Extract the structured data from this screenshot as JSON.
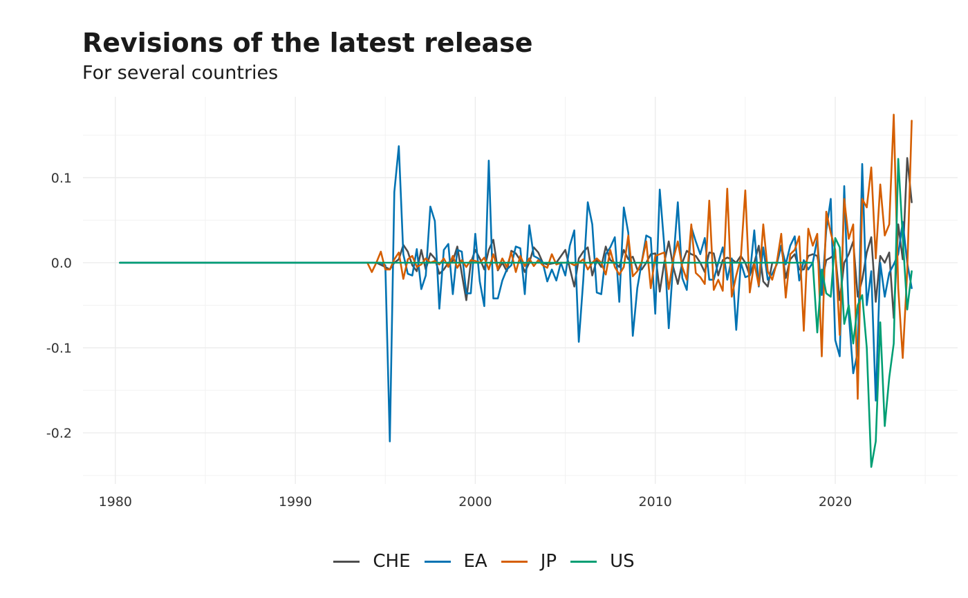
{
  "chart_data": {
    "type": "line",
    "title": "Revisions of the latest release",
    "subtitle": "For several countries",
    "xlabel": "",
    "ylabel": "",
    "xlim": [
      1978.2,
      2026.8
    ],
    "ylim": [
      -0.26,
      0.195
    ],
    "x_ticks": [
      1980,
      1990,
      2000,
      2010,
      2020
    ],
    "x_tick_labels": [
      "1980",
      "1990",
      "2000",
      "2010",
      "2020"
    ],
    "y_ticks": [
      0.1,
      0.0,
      -0.1,
      -0.2
    ],
    "y_tick_labels": [
      "0.1",
      "0.0",
      "-0.1",
      "-0.2"
    ],
    "grid": true,
    "legend_position": "bottom",
    "series": [
      {
        "name": "CHE",
        "color": "#4d4d4d",
        "x": [
          1980.25,
          1994.0,
          1994.5,
          1995.0,
          1995.25,
          1995.5,
          1995.75,
          1996.0,
          1996.25,
          1996.5,
          1996.75,
          1997.0,
          1997.25,
          1997.5,
          1997.75,
          1998.0,
          1998.25,
          1998.5,
          1998.75,
          1999.0,
          1999.25,
          1999.5,
          1999.75,
          2000.0,
          2000.25,
          2000.5,
          2000.75,
          2001.0,
          2001.25,
          2001.5,
          2001.75,
          2002.0,
          2002.25,
          2002.5,
          2002.75,
          2003.0,
          2003.25,
          2003.5,
          2003.75,
          2004.0,
          2004.5,
          2005.0,
          2005.5,
          2005.75,
          2006.0,
          2006.25,
          2006.5,
          2006.75,
          2007.0,
          2007.25,
          2007.5,
          2007.75,
          2008.0,
          2008.25,
          2008.5,
          2008.75,
          2009.0,
          2009.25,
          2009.5,
          2009.75,
          2010.0,
          2010.25,
          2010.5,
          2010.75,
          2011.0,
          2011.25,
          2011.5,
          2011.75,
          2012.0,
          2012.25,
          2012.5,
          2012.75,
          2013.0,
          2013.25,
          2013.5,
          2013.75,
          2014.0,
          2014.25,
          2014.5,
          2014.75,
          2015.0,
          2015.25,
          2015.5,
          2015.75,
          2016.0,
          2016.25,
          2016.5,
          2016.75,
          2017.0,
          2017.25,
          2017.5,
          2017.75,
          2018.0,
          2018.25,
          2018.5,
          2018.75,
          2019.0,
          2019.25,
          2019.5,
          2019.75,
          2020.0,
          2020.25,
          2020.5,
          2020.75,
          2021.0,
          2021.25,
          2021.5,
          2021.75,
          2022.0,
          2022.25,
          2022.5,
          2022.75,
          2023.0,
          2023.25,
          2023.5,
          2023.75,
          2024.0,
          2024.25
        ],
        "y": [
          0.0,
          0.0,
          0.0,
          -0.005,
          -0.008,
          0.0,
          0.004,
          0.021,
          0.013,
          -0.003,
          -0.01,
          0.015,
          -0.008,
          0.011,
          0.005,
          -0.013,
          -0.008,
          0.0,
          0.002,
          0.019,
          -0.013,
          -0.044,
          0.0,
          0.015,
          0.005,
          -0.008,
          0.015,
          0.027,
          -0.009,
          0.0,
          -0.01,
          0.014,
          0.011,
          0.003,
          -0.011,
          0.0,
          0.018,
          0.012,
          0.0,
          -0.002,
          0.0,
          0.015,
          -0.028,
          0.005,
          0.013,
          0.018,
          -0.015,
          0.003,
          -0.005,
          0.019,
          0.003,
          0.0,
          -0.005,
          0.015,
          0.004,
          0.007,
          -0.008,
          -0.008,
          0.0,
          0.01,
          0.011,
          -0.034,
          0.0,
          0.025,
          -0.005,
          -0.025,
          0.0,
          0.014,
          0.01,
          0.008,
          0.0,
          -0.011,
          0.012,
          0.011,
          -0.015,
          0.003,
          0.006,
          0.004,
          0.0,
          0.008,
          0.0,
          -0.015,
          0.0,
          0.02,
          -0.022,
          -0.028,
          0.0,
          0.0,
          0.02,
          -0.018,
          0.004,
          0.01,
          -0.008,
          -0.008,
          0.008,
          0.01,
          0.008,
          -0.023,
          0.003,
          0.006,
          0.01,
          -0.044,
          0.0,
          0.01,
          0.025,
          -0.04,
          -0.02,
          0.012,
          0.03,
          -0.046,
          0.008,
          0.0,
          0.012,
          -0.065,
          0.045,
          0.004,
          0.123,
          0.071
        ]
      },
      {
        "name": "EA",
        "color": "#0072b2",
        "x": [
          1980.25,
          1994.75,
          1995.0,
          1995.25,
          1995.5,
          1995.75,
          1996.0,
          1996.25,
          1996.5,
          1996.75,
          1997.0,
          1997.25,
          1997.5,
          1997.75,
          1998.0,
          1998.25,
          1998.5,
          1998.75,
          1999.0,
          1999.25,
          1999.5,
          1999.75,
          2000.0,
          2000.25,
          2000.5,
          2000.75,
          2001.0,
          2001.25,
          2001.5,
          2001.75,
          2002.0,
          2002.25,
          2002.5,
          2002.75,
          2003.0,
          2003.25,
          2003.5,
          2003.75,
          2004.0,
          2004.25,
          2004.5,
          2004.75,
          2005.0,
          2005.25,
          2005.5,
          2005.75,
          2006.0,
          2006.25,
          2006.5,
          2006.75,
          2007.0,
          2007.25,
          2007.5,
          2007.75,
          2008.0,
          2008.25,
          2008.5,
          2008.75,
          2009.0,
          2009.25,
          2009.5,
          2009.75,
          2010.0,
          2010.25,
          2010.5,
          2010.75,
          2011.0,
          2011.25,
          2011.5,
          2011.75,
          2012.0,
          2012.25,
          2012.5,
          2012.75,
          2013.0,
          2013.25,
          2013.5,
          2013.75,
          2014.0,
          2014.25,
          2014.5,
          2014.75,
          2015.0,
          2015.25,
          2015.5,
          2015.75,
          2016.0,
          2016.25,
          2016.5,
          2016.75,
          2017.0,
          2017.25,
          2017.5,
          2017.75,
          2018.0,
          2018.25,
          2018.5,
          2018.75,
          2019.0,
          2019.25,
          2019.5,
          2019.75,
          2020.0,
          2020.25,
          2020.5,
          2020.75,
          2021.0,
          2021.25,
          2021.5,
          2021.75,
          2022.0,
          2022.25,
          2022.5,
          2022.75,
          2023.0,
          2023.25,
          2023.5,
          2023.75,
          2024.0,
          2024.25
        ],
        "y": [
          0.0,
          0.0,
          -0.003,
          -0.21,
          0.083,
          0.137,
          0.01,
          -0.013,
          -0.015,
          0.016,
          -0.031,
          -0.015,
          0.066,
          0.049,
          -0.054,
          0.015,
          0.022,
          -0.037,
          0.015,
          0.013,
          -0.036,
          -0.036,
          0.034,
          -0.022,
          -0.051,
          0.12,
          -0.042,
          -0.042,
          -0.021,
          -0.008,
          -0.003,
          0.019,
          0.017,
          -0.037,
          0.044,
          0.008,
          0.005,
          0.0,
          -0.022,
          -0.008,
          -0.021,
          0.0,
          -0.015,
          0.02,
          0.038,
          -0.093,
          -0.02,
          0.071,
          0.045,
          -0.035,
          -0.037,
          0.01,
          0.018,
          0.03,
          -0.046,
          0.065,
          0.035,
          -0.086,
          -0.03,
          0.001,
          0.032,
          0.029,
          -0.06,
          0.086,
          0.02,
          -0.077,
          0.0,
          0.071,
          -0.018,
          -0.032,
          0.042,
          0.025,
          0.01,
          0.029,
          -0.02,
          -0.02,
          0.0,
          0.018,
          -0.02,
          0.005,
          -0.079,
          0.0,
          -0.017,
          -0.015,
          0.038,
          -0.028,
          0.018,
          -0.02,
          -0.013,
          -0.002,
          0.02,
          -0.002,
          0.02,
          0.031,
          -0.021,
          0.003,
          -0.008,
          0.0,
          0.028,
          -0.038,
          0.038,
          0.075,
          -0.091,
          -0.11,
          0.09,
          -0.06,
          -0.13,
          -0.105,
          0.116,
          -0.05,
          -0.01,
          -0.162,
          0.0,
          -0.04,
          -0.012,
          -0.002,
          0.01,
          0.048,
          0.0,
          -0.03
        ]
      },
      {
        "name": "JP",
        "color": "#d55e00",
        "x": [
          1994.0,
          1994.25,
          1994.5,
          1994.75,
          1995.0,
          1995.25,
          1995.5,
          1995.75,
          1996.0,
          1996.25,
          1996.5,
          1996.75,
          1997.0,
          1997.25,
          1997.5,
          1997.75,
          1998.0,
          1998.25,
          1998.5,
          1998.75,
          1999.0,
          1999.25,
          1999.5,
          1999.75,
          2000.0,
          2000.25,
          2000.5,
          2000.75,
          2001.0,
          2001.25,
          2001.5,
          2001.75,
          2002.0,
          2002.25,
          2002.5,
          2002.75,
          2003.0,
          2003.25,
          2003.5,
          2003.75,
          2004.0,
          2004.25,
          2004.5,
          2004.75,
          2005.0,
          2005.25,
          2005.5,
          2005.75,
          2006.0,
          2006.25,
          2006.5,
          2006.75,
          2007.0,
          2007.25,
          2007.5,
          2007.75,
          2008.0,
          2008.25,
          2008.5,
          2008.75,
          2009.0,
          2009.25,
          2009.5,
          2009.75,
          2010.0,
          2010.25,
          2010.5,
          2010.75,
          2011.0,
          2011.25,
          2011.5,
          2011.75,
          2012.0,
          2012.25,
          2012.5,
          2012.75,
          2013.0,
          2013.25,
          2013.5,
          2013.75,
          2014.0,
          2014.25,
          2014.5,
          2014.75,
          2015.0,
          2015.25,
          2015.5,
          2015.75,
          2016.0,
          2016.25,
          2016.5,
          2016.75,
          2017.0,
          2017.25,
          2017.5,
          2017.75,
          2018.0,
          2018.25,
          2018.5,
          2018.75,
          2019.0,
          2019.25,
          2019.5,
          2019.75,
          2020.0,
          2020.25,
          2020.5,
          2020.75,
          2021.0,
          2021.25,
          2021.5,
          2021.75,
          2022.0,
          2022.25,
          2022.5,
          2022.75,
          2023.0,
          2023.25,
          2023.5,
          2023.75,
          2024.0,
          2024.25
        ],
        "y": [
          0.0,
          -0.011,
          0.0,
          0.013,
          -0.008,
          -0.008,
          0.004,
          0.012,
          -0.019,
          0.004,
          0.008,
          -0.005,
          -0.002,
          0.005,
          0.0,
          0.002,
          -0.002,
          0.005,
          -0.005,
          0.008,
          -0.006,
          0.003,
          -0.005,
          0.003,
          0.002,
          0.0,
          0.006,
          -0.008,
          0.01,
          -0.008,
          0.005,
          -0.005,
          0.012,
          -0.011,
          0.008,
          -0.004,
          0.005,
          -0.004,
          0.003,
          -0.003,
          -0.006,
          0.01,
          -0.002,
          0.0,
          0.0,
          0.0,
          -0.003,
          0.0,
          0.004,
          -0.008,
          0.0,
          0.005,
          0.0,
          -0.014,
          0.015,
          -0.005,
          -0.014,
          -0.005,
          0.032,
          -0.016,
          -0.01,
          0.001,
          0.025,
          -0.03,
          0.008,
          0.01,
          0.012,
          -0.031,
          0.004,
          0.025,
          -0.005,
          -0.02,
          0.045,
          -0.012,
          -0.017,
          -0.025,
          0.073,
          -0.032,
          -0.02,
          -0.033,
          0.087,
          -0.04,
          -0.015,
          0.005,
          0.085,
          -0.035,
          0.0,
          -0.027,
          0.045,
          -0.01,
          -0.02,
          0.0,
          0.034,
          -0.041,
          0.01,
          0.015,
          0.031,
          -0.08,
          0.04,
          0.02,
          0.034,
          -0.11,
          0.06,
          0.035,
          0.015,
          -0.085,
          0.075,
          0.028,
          0.045,
          -0.16,
          0.075,
          0.065,
          0.112,
          0.005,
          0.092,
          0.032,
          0.045,
          0.174,
          -0.03,
          -0.112,
          -0.01,
          0.167
        ]
      },
      {
        "name": "US",
        "color": "#009e73",
        "x": [
          1980.25,
          2018.5,
          2018.75,
          2019.0,
          2019.25,
          2019.5,
          2019.75,
          2020.0,
          2020.25,
          2020.5,
          2020.75,
          2021.0,
          2021.25,
          2021.5,
          2021.75,
          2022.0,
          2022.25,
          2022.5,
          2022.75,
          2023.0,
          2023.25,
          2023.5,
          2023.75,
          2024.0,
          2024.25
        ],
        "y": [
          0.0,
          0.0,
          0.0,
          -0.082,
          -0.008,
          -0.036,
          -0.04,
          0.029,
          0.018,
          -0.072,
          -0.05,
          -0.095,
          -0.05,
          -0.038,
          -0.1,
          -0.24,
          -0.21,
          -0.07,
          -0.192,
          -0.135,
          -0.095,
          0.122,
          0.03,
          -0.055,
          -0.01
        ]
      }
    ]
  }
}
